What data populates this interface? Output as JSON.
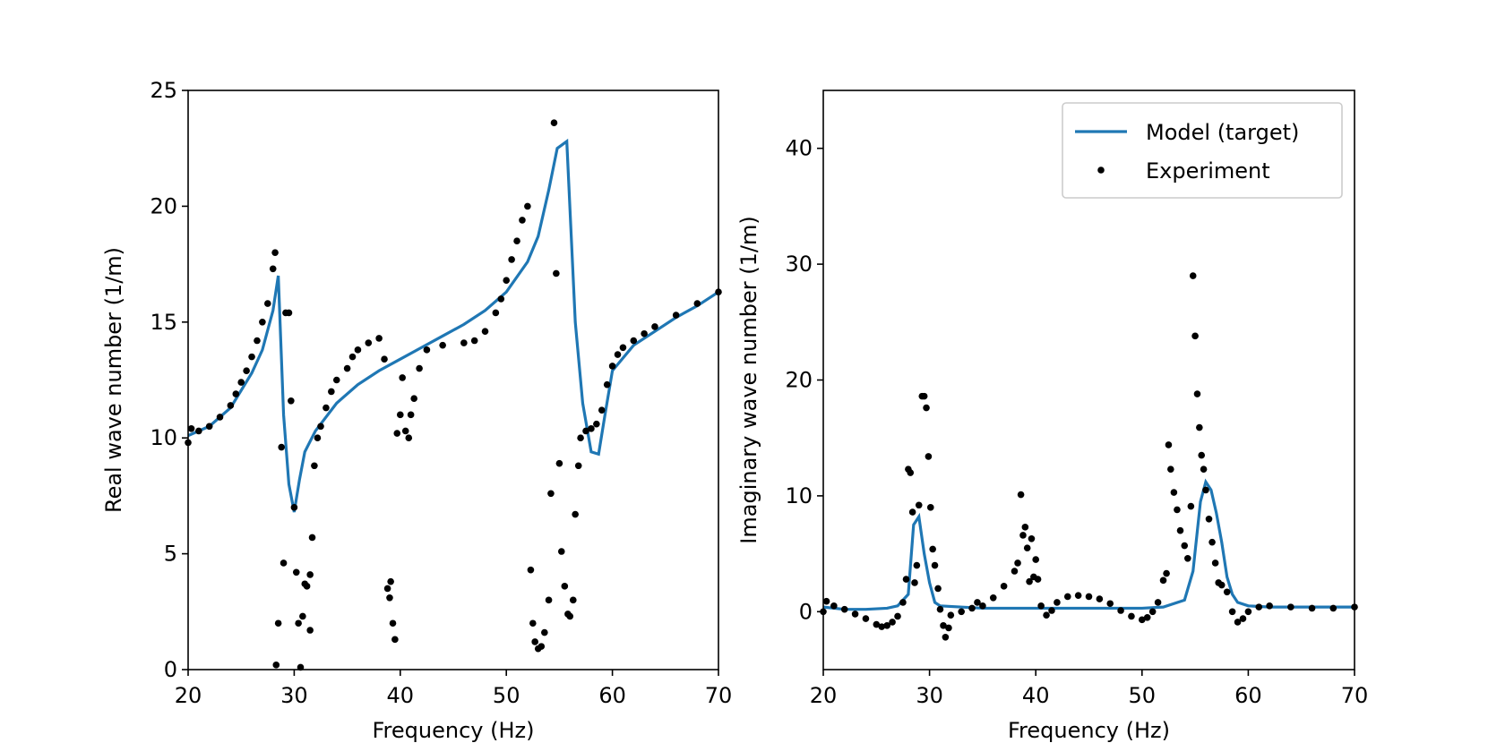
{
  "chart_data": [
    {
      "type": "line",
      "xlabel": "Frequency (Hz)",
      "ylabel": "Real wave number (1/m)",
      "xlim": [
        20,
        70
      ],
      "ylim": [
        0,
        25
      ],
      "xticks": [
        20,
        30,
        40,
        50,
        60,
        70
      ],
      "yticks": [
        0,
        5,
        10,
        15,
        20,
        25
      ],
      "series": [
        {
          "style": "line",
          "color": "#1f77b4",
          "x": [
            20,
            22,
            24,
            26,
            27,
            28,
            28.5,
            29,
            29.5,
            30,
            30.5,
            31,
            32,
            34,
            36,
            38,
            40,
            42,
            44,
            46,
            48,
            50,
            52,
            53,
            54,
            54.8,
            55.7,
            56.5,
            57.2,
            58,
            58.7,
            59.3,
            60,
            62,
            64,
            66,
            68,
            70
          ],
          "values": [
            10.1,
            10.5,
            11.3,
            12.8,
            13.8,
            15.5,
            17.0,
            11,
            8,
            6.8,
            8.2,
            9.4,
            10.3,
            11.5,
            12.3,
            12.9,
            13.4,
            13.9,
            14.4,
            14.9,
            15.5,
            16.3,
            17.6,
            18.7,
            20.7,
            22.5,
            22.8,
            15,
            11.5,
            9.4,
            9.3,
            11,
            12.9,
            14.0,
            14.6,
            15.2,
            15.7,
            16.3
          ]
        },
        {
          "style": "points",
          "color": "#000000",
          "x": [
            20,
            20.3,
            21,
            22,
            23,
            24,
            24.5,
            25,
            25.5,
            26,
            26.5,
            27,
            27.5,
            28,
            28.2,
            28.3,
            28.5,
            28.8,
            29,
            29.2,
            29.5,
            29.7,
            30,
            30.2,
            30.4,
            30.6,
            30.8,
            31,
            31.2,
            31.5,
            31.5,
            31.7,
            31.9,
            32.2,
            32.5,
            33,
            33.5,
            34,
            35,
            35.5,
            36,
            37,
            38,
            38.5,
            38.8,
            39,
            39.1,
            39.3,
            39.5,
            39.7,
            40,
            40.2,
            40.5,
            40.8,
            41,
            41.3,
            41.8,
            42.5,
            44,
            46,
            47,
            48,
            49,
            49.5,
            50,
            50.5,
            51,
            51.5,
            52,
            52.3,
            52.5,
            52.7,
            53,
            53.3,
            53.6,
            54,
            54.2,
            54.5,
            54.7,
            55,
            55.2,
            55.5,
            55.8,
            56,
            56.3,
            56.5,
            56.8,
            57,
            57.5,
            58,
            58.5,
            59,
            59.5,
            60,
            60.5,
            61,
            62,
            63,
            64,
            66,
            68,
            70
          ],
          "values": [
            9.8,
            10.4,
            10.3,
            10.5,
            10.9,
            11.4,
            11.9,
            12.4,
            12.9,
            13.5,
            14.2,
            15,
            15.8,
            17.3,
            18,
            0.2,
            2,
            9.6,
            4.6,
            15.4,
            15.4,
            11.6,
            7,
            4.2,
            2,
            0.1,
            2.3,
            3.7,
            3.6,
            1.7,
            4.1,
            5.7,
            8.8,
            10,
            10.5,
            11.3,
            12,
            12.5,
            13,
            13.5,
            13.8,
            14.1,
            14.3,
            13.4,
            3.5,
            3.1,
            3.8,
            2,
            1.3,
            10.2,
            11,
            12.6,
            10.3,
            10,
            11,
            11.7,
            13,
            13.8,
            14,
            14.1,
            14.2,
            14.6,
            15.4,
            16,
            16.8,
            17.7,
            18.5,
            19.4,
            20,
            4.3,
            2,
            1.2,
            0.9,
            1,
            1.6,
            3,
            7.6,
            23.6,
            17.1,
            8.9,
            5.1,
            3.6,
            2.4,
            2.3,
            3,
            6.7,
            8.8,
            10,
            10.3,
            10.4,
            10.6,
            11.2,
            12.3,
            13.1,
            13.6,
            13.9,
            14.2,
            14.5,
            14.8,
            15.3,
            15.8,
            16.3
          ]
        }
      ]
    },
    {
      "type": "line",
      "xlabel": "Frequency (Hz)",
      "ylabel": "Imaginary wave number (1/m)",
      "xlim": [
        20,
        70
      ],
      "ylim": [
        -5,
        45
      ],
      "xticks": [
        20,
        30,
        40,
        50,
        60,
        70
      ],
      "yticks": [
        0,
        10,
        20,
        30,
        40
      ],
      "legend": "upper right",
      "series": [
        {
          "name": "Model (target)",
          "style": "line",
          "color": "#1f77b4",
          "x": [
            20,
            22,
            24,
            26,
            27,
            28,
            28.5,
            29,
            29.5,
            30,
            30.5,
            31,
            35,
            40,
            45,
            50,
            52,
            54,
            54.8,
            55.5,
            56,
            56.5,
            57,
            57.5,
            58,
            58.5,
            59,
            60,
            62,
            66,
            70
          ],
          "values": [
            0.4,
            0.2,
            0.2,
            0.3,
            0.5,
            1.5,
            7.5,
            8.2,
            5,
            2.5,
            0.8,
            0.5,
            0.3,
            0.3,
            0.3,
            0.3,
            0.4,
            1,
            3.5,
            9.5,
            11.2,
            10.5,
            8.5,
            6,
            3,
            1.5,
            0.8,
            0.5,
            0.4,
            0.4,
            0.4
          ]
        },
        {
          "name": "Experiment",
          "style": "points",
          "color": "#000000",
          "x": [
            20,
            20.3,
            21,
            22,
            23,
            24,
            25,
            25.5,
            26,
            26.5,
            27,
            27.5,
            27.8,
            28,
            28.2,
            28.4,
            28.6,
            28.8,
            29,
            29.3,
            29.5,
            29.7,
            29.9,
            30.1,
            30.3,
            30.5,
            30.8,
            31,
            31.3,
            31.5,
            31.8,
            32,
            33,
            34,
            34.5,
            35,
            36,
            37,
            38,
            38.3,
            38.6,
            38.8,
            39,
            39.2,
            39.4,
            39.6,
            39.8,
            40,
            40.2,
            40.5,
            41,
            41.5,
            42,
            43,
            44,
            45,
            46,
            47,
            48,
            49,
            50,
            50.5,
            51,
            51.5,
            52,
            52.3,
            52.5,
            52.7,
            53,
            53.3,
            53.6,
            54,
            54.3,
            54.6,
            54.8,
            55,
            55.2,
            55.4,
            55.6,
            55.8,
            56,
            56.3,
            56.6,
            56.9,
            57.2,
            57.5,
            58,
            58.5,
            59,
            59.5,
            60,
            61,
            62,
            64,
            66,
            68,
            70
          ],
          "values": [
            0,
            0.9,
            0.5,
            0.2,
            -0.2,
            -0.6,
            -1.1,
            -1.3,
            -1.2,
            -0.9,
            -0.4,
            0.8,
            2.8,
            12.3,
            12,
            8.6,
            2.5,
            4,
            9.2,
            18.6,
            18.6,
            17.6,
            13.4,
            9,
            5.4,
            4,
            2,
            0.2,
            -1.2,
            -2.2,
            -1.4,
            -0.3,
            0,
            0.3,
            0.8,
            0.5,
            1.2,
            2.2,
            3.5,
            4.2,
            10.1,
            6.6,
            7.3,
            5.5,
            2.6,
            6.3,
            3,
            4.5,
            2.8,
            0.5,
            -0.3,
            0.1,
            0.8,
            1.3,
            1.4,
            1.3,
            1.1,
            0.7,
            0.1,
            -0.4,
            -0.7,
            -0.5,
            0,
            0.8,
            2.7,
            3.3,
            14.4,
            12.3,
            10.3,
            8.8,
            7,
            5.7,
            4.6,
            9.1,
            29,
            23.8,
            18.8,
            15.9,
            13.5,
            12.3,
            10.5,
            8,
            6,
            4.2,
            2.5,
            2.3,
            1.7,
            0,
            -0.9,
            -0.6,
            0,
            0.4,
            0.5,
            0.4,
            0.3,
            0.3,
            0.4
          ]
        }
      ]
    }
  ]
}
